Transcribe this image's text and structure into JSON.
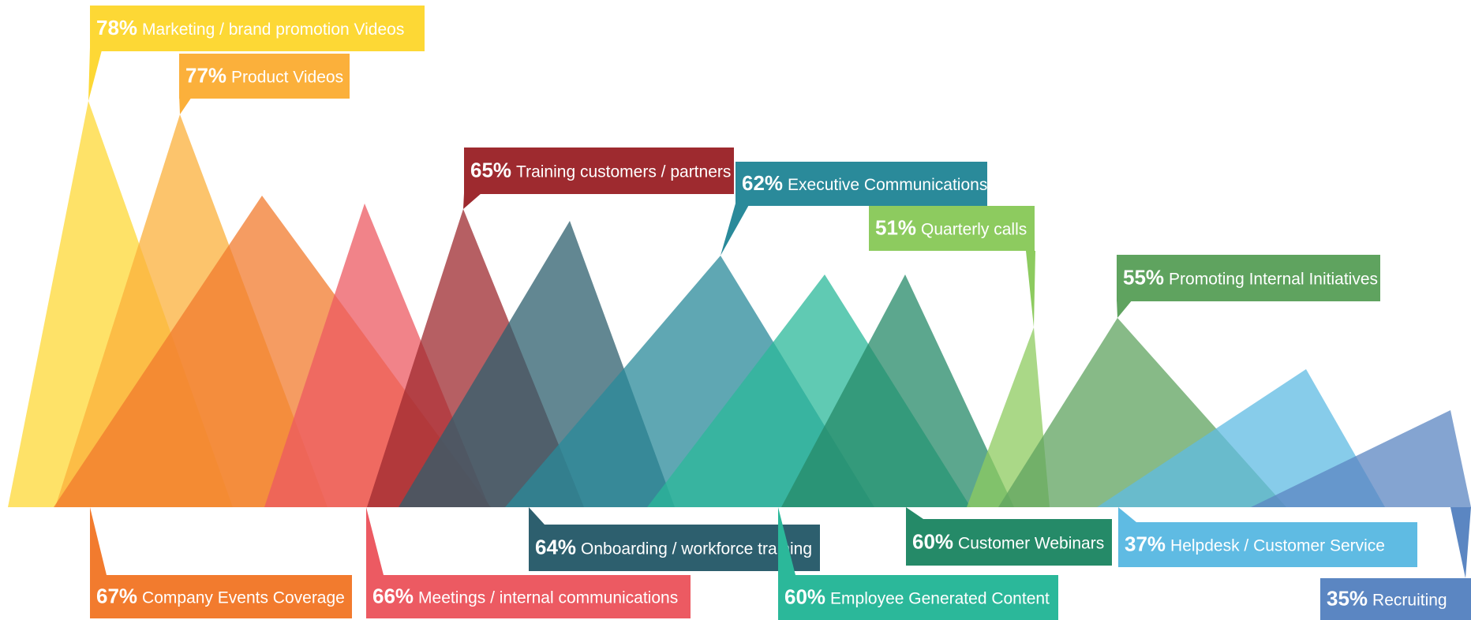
{
  "chart_data": {
    "type": "area",
    "title": "",
    "series": [
      {
        "label": "Marketing / brand promotion Videos",
        "value": 78,
        "color": "#FDD835"
      },
      {
        "label": "Product Videos",
        "value": 77,
        "color": "#FBB03B"
      },
      {
        "label": "Company Events Coverage",
        "value": 67,
        "color": "#F27B2E"
      },
      {
        "label": "Meetings / internal communications",
        "value": 66,
        "color": "#EC5A62"
      },
      {
        "label": "Training customers / partners",
        "value": 65,
        "color": "#9E2A2F"
      },
      {
        "label": "Onboarding / workforce training",
        "value": 64,
        "color": "#2D5F6E"
      },
      {
        "label": "Executive Communications",
        "value": 62,
        "color": "#2A8A9A"
      },
      {
        "label": "Employee Generated Content",
        "value": 60,
        "color": "#2BB89A"
      },
      {
        "label": "Customer Webinars",
        "value": 60,
        "color": "#258A68"
      },
      {
        "label": "Quarterly calls",
        "value": 51,
        "color": "#8DCB5F"
      },
      {
        "label": "Promoting Internal Initiatives",
        "value": 55,
        "color": "#5FA35F"
      },
      {
        "label": "Helpdesk / Customer Service",
        "value": 37,
        "color": "#5FBBE3"
      },
      {
        "label": "Recruiting",
        "value": 35,
        "color": "#5B86C2"
      }
    ]
  }
}
